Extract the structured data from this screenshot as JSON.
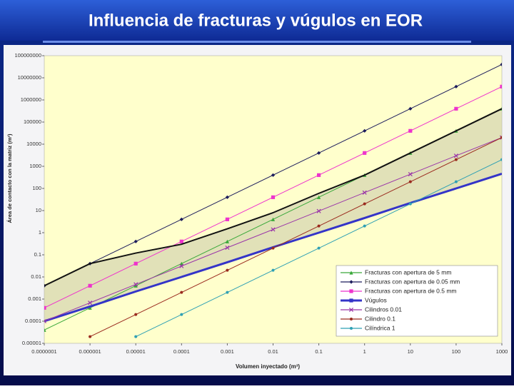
{
  "chart_data": {
    "type": "line",
    "title": "Influencia de fracturas y vúgulos en EOR",
    "xlabel": "Volumen inyectado (m³)",
    "ylabel": "Área de contacto con la matriz (m²)",
    "xscale": "log",
    "yscale": "log",
    "xlim": [
      1e-07,
      1000
    ],
    "ylim": [
      1e-05,
      100000000
    ],
    "xticks": [
      {
        "value": 1e-07,
        "label": "0.0000001"
      },
      1e-06,
      1e-05,
      0.0001,
      0.001,
      0.01,
      0.1,
      1,
      10,
      100,
      1000
    ],
    "yticks": [
      100000000,
      10000000,
      1000000,
      100000,
      10000,
      1000,
      100,
      10,
      1,
      0.1,
      0.01,
      0.001,
      0.0001,
      1e-05
    ],
    "legend": "lower right",
    "shade_between": [
      7,
      3
    ],
    "x": [
      1e-07,
      1e-06,
      1e-05,
      0.0001,
      0.001,
      0.01,
      0.1,
      1,
      10,
      100,
      1000
    ],
    "series": [
      {
        "name": "Fracturas con apertura de 5 mm",
        "color": "#3aa83a",
        "marker": "triangle",
        "values": [
          4e-05,
          0.0004,
          0.004,
          0.04,
          0.4,
          4,
          40,
          400,
          4000,
          40000,
          400000
        ]
      },
      {
        "name": "Fracturas con apertura de 0.05 mm",
        "color": "#1c1c5c",
        "marker": "diamond",
        "values": [
          0.004,
          0.04,
          0.4,
          4,
          40,
          400,
          4000,
          40000,
          400000,
          4000000,
          40000000
        ]
      },
      {
        "name": "Fracturas con apertura de 0.5 mm",
        "color": "#ee33cc",
        "marker": "square",
        "values": [
          0.0004,
          0.004,
          0.04,
          0.4,
          4,
          40,
          400,
          4000,
          40000,
          400000,
          4000000
        ]
      },
      {
        "name": "Vúgulos",
        "color": "#3434c8",
        "marker": "none",
        "width": 3,
        "values": [
          0.0001,
          0.00046,
          0.0022,
          0.01,
          0.046,
          0.22,
          1,
          4.6,
          22,
          100,
          460
        ]
      },
      {
        "name": "Cilindros 0.01",
        "color": "#9a35a8",
        "marker": "cross",
        "values": [
          0.0001,
          0.00068,
          0.0046,
          0.031,
          0.21,
          1.4,
          9.5,
          65,
          440,
          3000,
          20000
        ]
      },
      {
        "name": "Cilindro 0.1",
        "color": "#9a2a1e",
        "marker": "circle",
        "values": [
          null,
          2e-05,
          0.0002,
          0.002,
          0.02,
          0.2,
          2,
          20,
          200,
          2000,
          20000
        ]
      },
      {
        "name": "Cilíndrica 1",
        "color": "#2fa0b4",
        "marker": "circle",
        "values": [
          null,
          null,
          2e-05,
          0.0002,
          0.002,
          0.02,
          0.2,
          2,
          20,
          200,
          2000
        ]
      },
      {
        "color": "#111111",
        "marker": "none",
        "width": 2,
        "values": [
          0.004,
          0.04,
          0.12,
          0.3,
          1.5,
          8,
          60,
          400,
          4000,
          40000,
          400000
        ]
      }
    ]
  }
}
